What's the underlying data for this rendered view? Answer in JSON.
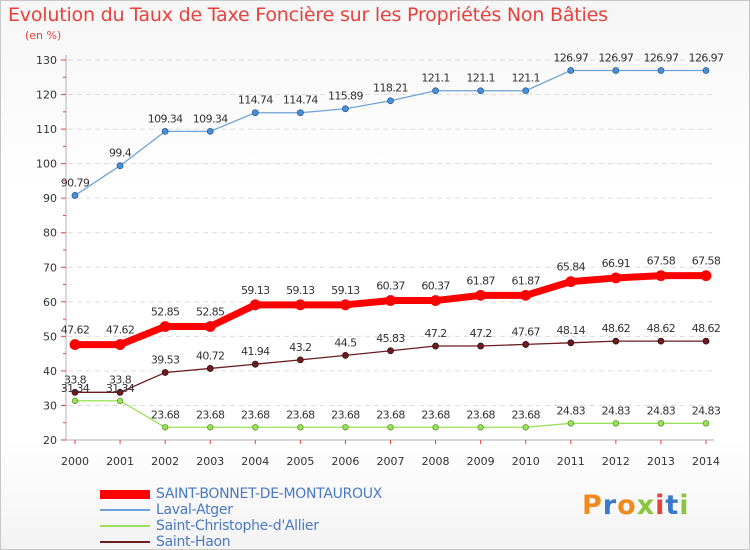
{
  "title": "Evolution du Taux de Taxe Foncière sur les Propriétés Non Bâties",
  "subtitle": "(en %)",
  "brand": {
    "text": "Proxiti",
    "colors": [
      "#f08a1c",
      "#3a78c9",
      "#f08a1c",
      "#8bc53f",
      "#e8413c",
      "#3a78c9",
      "#8bc53f"
    ]
  },
  "chart_data": {
    "type": "line",
    "title": "Evolution du Taux de Taxe Foncière sur les Propriétés Non Bâties",
    "ylabel": "(en %)",
    "ylim": [
      20,
      130
    ],
    "yticks": [
      20,
      30,
      40,
      50,
      60,
      70,
      80,
      90,
      100,
      110,
      120,
      130
    ],
    "x": [
      "2000",
      "2001",
      "2002",
      "2003",
      "2004",
      "2005",
      "2006",
      "2007",
      "2008",
      "2009",
      "2010",
      "2011",
      "2012",
      "2013",
      "2014"
    ],
    "series": [
      {
        "name": "SAINT-BONNET-DE-MONTAUROUX",
        "color": "#ff0000",
        "values": [
          47.62,
          47.62,
          52.85,
          52.85,
          59.13,
          59.13,
          59.13,
          60.37,
          60.37,
          61.87,
          61.87,
          65.84,
          66.91,
          67.58,
          67.58
        ],
        "labels": [
          "47.62",
          "47.62",
          "52.85",
          "52.85",
          "59.13",
          "59.13",
          "59.13",
          "60.37",
          "60.37",
          "61.87",
          "61.87",
          "65.84",
          "66.91",
          "67.58",
          "67.58"
        ]
      },
      {
        "name": "Laval-Atger",
        "color": "#6fa3d8",
        "values": [
          90.79,
          99.4,
          109.34,
          109.34,
          114.74,
          114.74,
          115.89,
          118.21,
          121.1,
          121.1,
          121.1,
          126.97,
          126.97,
          126.97,
          126.97
        ],
        "labels": [
          "90.79",
          "99.4",
          "109.34",
          "109.34",
          "114.74",
          "114.74",
          "115.89",
          "118.21",
          "121.1",
          "121.1",
          "121.1",
          "126.97",
          "126.97",
          "126.97",
          "126.97"
        ]
      },
      {
        "name": "Saint-Christophe-d'Allier",
        "color": "#9be05a",
        "values": [
          31.34,
          31.34,
          23.68,
          23.68,
          23.68,
          23.68,
          23.68,
          23.68,
          23.68,
          23.68,
          23.68,
          24.83,
          24.83,
          24.83,
          24.83
        ],
        "labels": [
          "31.34",
          "31.34",
          "23.68",
          "23.68",
          "23.68",
          "23.68",
          "23.68",
          "23.68",
          "23.68",
          "23.68",
          "23.68",
          "24.83",
          "24.83",
          "24.83",
          "24.83"
        ]
      },
      {
        "name": "Saint-Haon",
        "color": "#6b1d22",
        "values": [
          33.8,
          33.8,
          39.53,
          40.72,
          41.94,
          43.2,
          44.5,
          45.83,
          47.2,
          47.2,
          47.67,
          48.14,
          48.62,
          48.62,
          48.62
        ],
        "labels": [
          "33.8",
          "33.8",
          "39.53",
          "40.72",
          "41.94",
          "43.2",
          "44.5",
          "45.83",
          "47.2",
          "47.2",
          "47.67",
          "48.14",
          "48.62",
          "48.62",
          "48.62"
        ]
      }
    ]
  }
}
